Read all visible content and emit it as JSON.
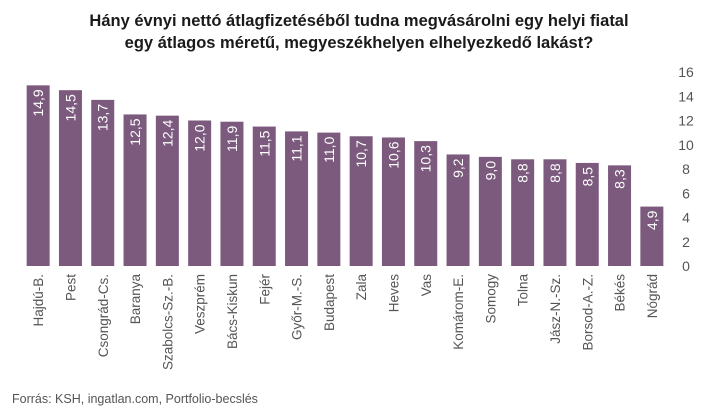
{
  "title_lines": [
    "Hány évnyi nettó átlagfizetéséből tudna megvásárolni egy helyi fiatal",
    "egy átlagos méretű, megyeszékhelyen elhelyezkedő lakást?"
  ],
  "source": "Forrás: KSH, ingatlan.com, Portfolio-becslés",
  "colors": {
    "bar": "#7b5a7d",
    "bar_label": "#ffffff",
    "axis_text": "#555555",
    "grid": "#e6e6e6"
  },
  "chart_data": {
    "type": "bar",
    "categories": [
      "Hajdú-B.",
      "Pest",
      "Csongrád-Cs.",
      "Baranya",
      "Szabolcs-Sz.-B.",
      "Veszprém",
      "Bács-Kiskun",
      "Fejér",
      "Győr-M.-S.",
      "Budapest",
      "Zala",
      "Heves",
      "Vas",
      "Komárom-E.",
      "Somogy",
      "Tolna",
      "Jász-N.-Sz.",
      "Borsod-A.-Z.",
      "Békés",
      "Nógrád"
    ],
    "values": [
      14.9,
      14.5,
      13.7,
      12.5,
      12.4,
      12.0,
      11.9,
      11.5,
      11.1,
      11.0,
      10.7,
      10.6,
      10.3,
      9.2,
      9.0,
      8.8,
      8.8,
      8.5,
      8.3,
      4.9
    ],
    "value_labels": [
      "14,9",
      "14,5",
      "13,7",
      "12,5",
      "12,4",
      "12,0",
      "11,9",
      "11,5",
      "11,1",
      "11,0",
      "10,7",
      "10,6",
      "10,3",
      "9,2",
      "9,0",
      "8,8",
      "8,8",
      "8,5",
      "8,3",
      "4,9"
    ],
    "yticks": [
      0,
      2,
      4,
      6,
      8,
      10,
      12,
      14,
      16
    ],
    "ylim": [
      0,
      16
    ],
    "y_axis_side": "right",
    "grid": false
  }
}
